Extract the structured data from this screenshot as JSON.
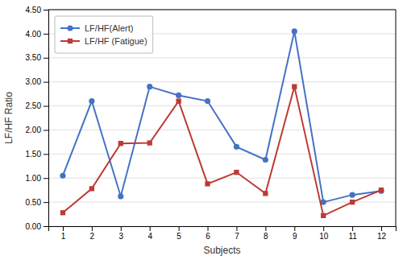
{
  "chart_data": {
    "type": "line",
    "x": [
      1,
      2,
      3,
      4,
      5,
      6,
      7,
      8,
      9,
      10,
      11,
      12
    ],
    "series": [
      {
        "name": "LF/HF(Alert)",
        "color": "#4472C4",
        "marker": "circle",
        "line_style": "solid",
        "values": [
          1.05,
          2.6,
          0.62,
          2.9,
          2.72,
          2.6,
          1.65,
          1.38,
          4.05,
          0.5,
          0.65,
          0.73
        ]
      },
      {
        "name": "LF/HF (Fatigue)",
        "color": "#BE3A34",
        "marker": "square",
        "line_style": "solid",
        "values": [
          0.28,
          0.78,
          1.72,
          1.73,
          2.6,
          0.88,
          1.12,
          0.68,
          2.9,
          0.22,
          0.5,
          0.75
        ]
      }
    ],
    "x_label": "Subjects",
    "y_label": "LF/HF Ratio",
    "xlim": [
      0.5,
      12.5
    ],
    "xticks": [
      1,
      2,
      3,
      4,
      5,
      6,
      7,
      8,
      9,
      10,
      11,
      12
    ],
    "ylim": [
      0.0,
      4.5
    ],
    "yticks": [
      {
        "value": 0.0,
        "label": "0.00"
      },
      {
        "value": 0.5,
        "label": "0.50"
      },
      {
        "value": 1.0,
        "label": "1.00"
      },
      {
        "value": 1.5,
        "label": "1.50"
      },
      {
        "value": 2.0,
        "label": "2.00"
      },
      {
        "value": 2.5,
        "label": "2.50"
      },
      {
        "value": 3.0,
        "label": "3.00"
      },
      {
        "value": 3.5,
        "label": "3.50"
      },
      {
        "value": 4.0,
        "label": "4.00"
      },
      {
        "value": 4.5,
        "label": "4.50"
      }
    ],
    "grid": "y",
    "legend": "upper left"
  }
}
